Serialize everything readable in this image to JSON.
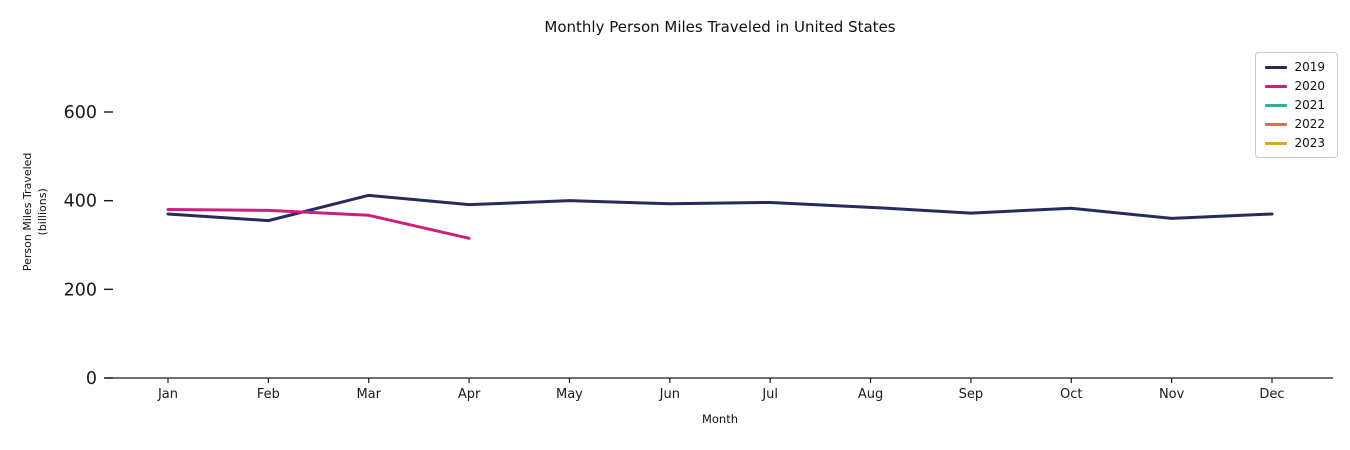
{
  "chart_data": {
    "type": "line",
    "title": "Monthly Person Miles Traveled in United States",
    "xlabel": "Month",
    "ylabel_line1": "Person Miles Traveled",
    "ylabel_line2": "(billions)",
    "categories": [
      "Jan",
      "Feb",
      "Mar",
      "Apr",
      "May",
      "Jun",
      "Jul",
      "Aug",
      "Sep",
      "Oct",
      "Nov",
      "Dec"
    ],
    "yticks": [
      0,
      200,
      400,
      600
    ],
    "ylim": [
      0,
      700
    ],
    "grid": false,
    "legend_position": "upper right",
    "series": [
      {
        "name": "2019",
        "color": "#262b5f",
        "values": [
          370,
          355,
          412,
          391,
          400,
          393,
          396,
          385,
          372,
          383,
          360,
          370
        ]
      },
      {
        "name": "2020",
        "color": "#c9227e",
        "values": [
          380,
          378,
          367,
          315
        ]
      },
      {
        "name": "2021",
        "color": "#2ab09b",
        "values": []
      },
      {
        "name": "2022",
        "color": "#e06a55",
        "values": []
      },
      {
        "name": "2023",
        "color": "#dfa520",
        "values": []
      }
    ]
  }
}
